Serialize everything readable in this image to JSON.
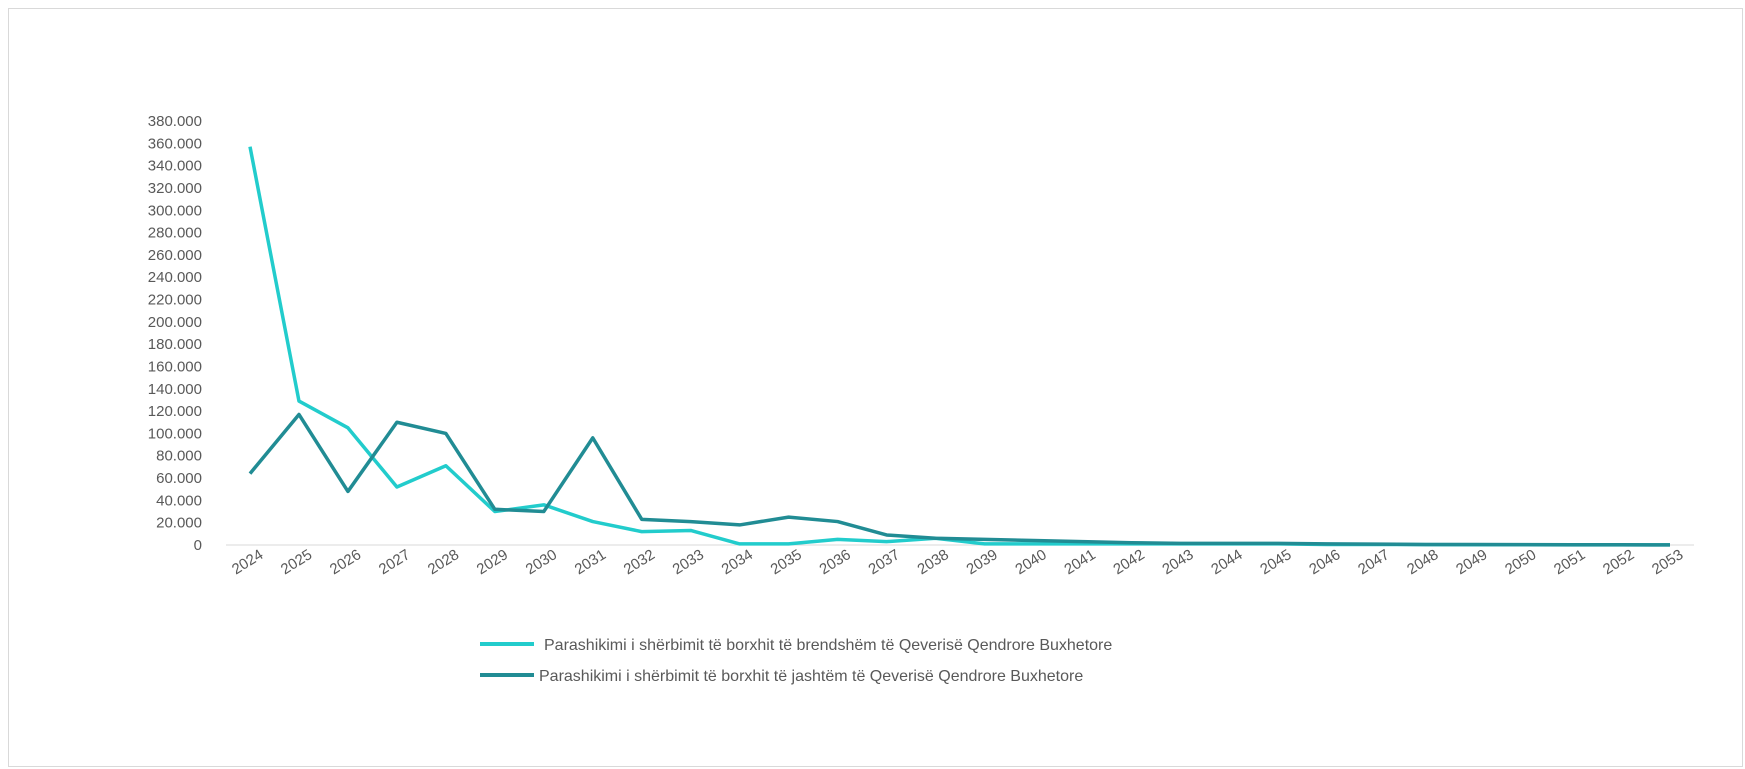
{
  "chart_data": {
    "type": "line",
    "title": "",
    "xlabel": "",
    "ylabel": "",
    "ylim": [
      0,
      380000
    ],
    "y_tick_step": 20000,
    "y_tick_labels": [
      "0",
      "20.000",
      "40.000",
      "60.000",
      "80.000",
      "100.000",
      "120.000",
      "140.000",
      "160.000",
      "180.000",
      "200.000",
      "220.000",
      "240.000",
      "260.000",
      "280.000",
      "300.000",
      "320.000",
      "340.000",
      "360.000",
      "380.000"
    ],
    "x": [
      "2024",
      "2025",
      "2026",
      "2027",
      "2028",
      "2029",
      "2030",
      "2031",
      "2032",
      "2033",
      "2034",
      "2035",
      "2036",
      "2037",
      "2038",
      "2039",
      "2040",
      "2041",
      "2042",
      "2043",
      "2044",
      "2045",
      "2046",
      "2047",
      "2048",
      "2049",
      "2050",
      "2051",
      "2052",
      "2053"
    ],
    "grid": false,
    "legend_position": "bottom",
    "series": [
      {
        "name": "Parashikimi  i shërbimit të borxhit të brendshëm të Qeverisë Qendrore Buxhetore",
        "color": "#22cccc",
        "values": [
          357000,
          129000,
          105000,
          52000,
          71000,
          30000,
          36000,
          21000,
          12000,
          13000,
          1000,
          1000,
          5000,
          3000,
          6000,
          1000,
          1000,
          1000,
          1000,
          1000,
          1000,
          1000,
          500,
          500,
          300,
          200,
          200,
          100,
          100,
          100
        ]
      },
      {
        "name": "Parashikimi  i shërbimit të borxhit të jashtëm të Qeverisë Qendrore Buxhetore",
        "color": "#218c94",
        "values": [
          64000,
          117000,
          48000,
          110000,
          100000,
          32000,
          30000,
          96000,
          23000,
          21000,
          18000,
          25000,
          21000,
          9000,
          6000,
          5000,
          4000,
          3000,
          2000,
          1500,
          1500,
          1500,
          1000,
          800,
          500,
          400,
          300,
          200,
          200,
          100
        ]
      }
    ]
  }
}
